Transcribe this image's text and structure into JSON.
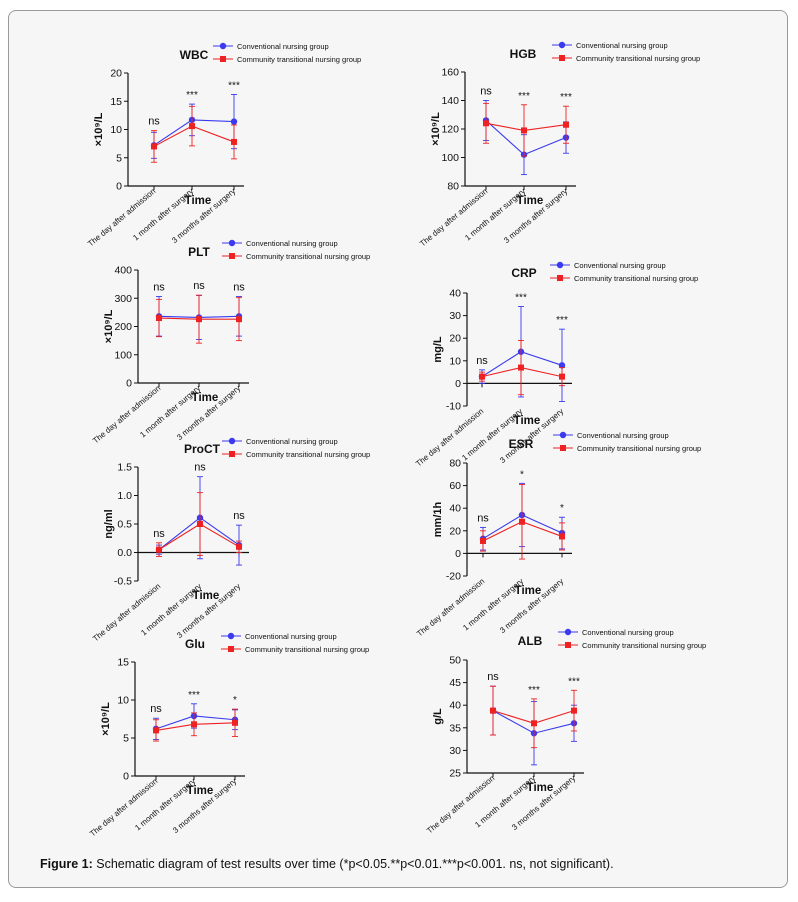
{
  "caption": {
    "label": "Figure 1:",
    "text": " Schematic diagram of test results over time (*p<0.05.**p<0.01.***p<0.001. ns, not significant)."
  },
  "colors": {
    "conventional": "#3a3af0",
    "community": "#ee2222"
  },
  "chart_data": [
    {
      "type": "line",
      "title": "WBC",
      "ylabel": "×10⁹/L",
      "xlabel": "Time",
      "categories": [
        "The day after admission",
        "1 month after surgery",
        "3 months after surgery"
      ],
      "ylim": [
        0,
        20
      ],
      "yticks": [
        0,
        5,
        10,
        15,
        20
      ],
      "significance": [
        "ns",
        "***",
        "***"
      ],
      "legend": [
        "Conventional nursing group",
        "Community transitional nursing group"
      ],
      "series": [
        {
          "name": "Conventional nursing group",
          "values": [
            7.2,
            11.7,
            11.4
          ],
          "err": [
            2.3,
            2.8,
            4.8
          ]
        },
        {
          "name": "Community transitional nursing group",
          "values": [
            7.0,
            10.6,
            7.8
          ],
          "err": [
            2.8,
            3.5,
            3.0
          ]
        }
      ]
    },
    {
      "type": "line",
      "title": "HGB",
      "ylabel": "×10⁹/L",
      "xlabel": "Time",
      "categories": [
        "The day after admission",
        "1 month after surgery",
        "3 months after surgery"
      ],
      "ylim": [
        80,
        160
      ],
      "yticks": [
        80,
        100,
        120,
        140,
        160
      ],
      "significance": [
        "ns",
        "***",
        "***"
      ],
      "legend": [
        "Conventional nursing group",
        "Community transitional nursing group"
      ],
      "series": [
        {
          "name": "Conventional nursing group",
          "values": [
            126,
            102,
            114
          ],
          "err": [
            14,
            14,
            11
          ]
        },
        {
          "name": "Community transitional nursing group",
          "values": [
            124,
            119,
            123
          ],
          "err": [
            14,
            18,
            13
          ]
        }
      ]
    },
    {
      "type": "line",
      "title": "PLT",
      "ylabel": "×10⁹/L",
      "xlabel": "Time",
      "categories": [
        "The day after admission",
        "1 month after surgery",
        "3 months after surgery"
      ],
      "ylim": [
        0,
        400
      ],
      "yticks": [
        0,
        100,
        200,
        300,
        400
      ],
      "significance": [
        "ns",
        "ns",
        "ns"
      ],
      "legend": [
        "Conventional nursing group",
        "Community transitional nursing group"
      ],
      "series": [
        {
          "name": "Conventional nursing group",
          "values": [
            236,
            232,
            236
          ],
          "err": [
            70,
            78,
            70
          ]
        },
        {
          "name": "Community transitional nursing group",
          "values": [
            230,
            226,
            226
          ],
          "err": [
            66,
            85,
            76
          ]
        }
      ]
    },
    {
      "type": "line",
      "title": "CRP",
      "ylabel": "mg/L",
      "xlabel": "Time",
      "categories": [
        "The day after admission",
        "1 month after surgery",
        "3 months after surgery"
      ],
      "ylim": [
        -10,
        40
      ],
      "yticks": [
        -10,
        0,
        10,
        20,
        30,
        40
      ],
      "significance": [
        "ns",
        "***",
        "***"
      ],
      "legend": [
        "Conventional nursing group",
        "Community transitional nursing group"
      ],
      "series": [
        {
          "name": "Conventional nursing group",
          "values": [
            3,
            14,
            8
          ],
          "err": [
            3,
            20,
            16
          ]
        },
        {
          "name": "Community transitional nursing group",
          "values": [
            3,
            7,
            3
          ],
          "err": [
            2,
            12,
            4
          ]
        }
      ]
    },
    {
      "type": "line",
      "title": "ProCT",
      "ylabel": "ng/ml",
      "xlabel": "Time",
      "categories": [
        "The day after admission",
        "1 month after surgery",
        "3 months after surgery"
      ],
      "ylim": [
        -0.5,
        1.5
      ],
      "yticks": [
        -0.5,
        0.0,
        0.5,
        1.0,
        1.5
      ],
      "ytick_labels": [
        "-0.5",
        "0.0",
        "0.5",
        "1.0",
        "1.5"
      ],
      "significance": [
        "ns",
        "ns",
        "ns"
      ],
      "legend": [
        "Conventional nursing group",
        "Community transitional nursing group"
      ],
      "series": [
        {
          "name": "Conventional nursing group",
          "values": [
            0.05,
            0.61,
            0.13
          ],
          "err": [
            0.08,
            0.72,
            0.35
          ]
        },
        {
          "name": "Community transitional nursing group",
          "values": [
            0.05,
            0.5,
            0.1
          ],
          "err": [
            0.12,
            0.55,
            0.1
          ]
        }
      ]
    },
    {
      "type": "line",
      "title": "ESR",
      "ylabel": "mm/1h",
      "xlabel": "Time",
      "categories": [
        "The day after admission",
        "1 month after surgery",
        "3 months after surgery"
      ],
      "ylim": [
        -20,
        80
      ],
      "yticks": [
        -20,
        0,
        20,
        40,
        60,
        80
      ],
      "significance": [
        "ns",
        "*",
        "*"
      ],
      "legend": [
        "Conventional nursing group",
        "Community transitional nursing group"
      ],
      "series": [
        {
          "name": "Conventional nursing group",
          "values": [
            13,
            34,
            18
          ],
          "err": [
            10,
            28,
            14
          ]
        },
        {
          "name": "Community transitional nursing group",
          "values": [
            11,
            28,
            15
          ],
          "err": [
            9,
            33,
            12
          ]
        }
      ]
    },
    {
      "type": "line",
      "title": "Glu",
      "ylabel": "×10⁹/L",
      "xlabel": "Time",
      "categories": [
        "The day after admission",
        "1 month after surgery",
        "3 months after surgery"
      ],
      "ylim": [
        0,
        15
      ],
      "yticks": [
        0,
        5,
        10,
        15
      ],
      "significance": [
        "ns",
        "***",
        "*"
      ],
      "legend": [
        "Conventional nursing group",
        "Community transitional nursing group"
      ],
      "series": [
        {
          "name": "Conventional nursing group",
          "values": [
            6.2,
            7.9,
            7.4
          ],
          "err": [
            1.4,
            1.6,
            1.3
          ]
        },
        {
          "name": "Community transitional nursing group",
          "values": [
            6.0,
            6.8,
            7.0
          ],
          "err": [
            1.4,
            1.5,
            1.8
          ]
        }
      ]
    },
    {
      "type": "line",
      "title": "ALB",
      "ylabel": "g/L",
      "xlabel": "Time",
      "categories": [
        "The day after admission",
        "1 month after surgery",
        "3 months after surgery"
      ],
      "ylim": [
        25,
        50
      ],
      "yticks": [
        25,
        30,
        35,
        40,
        45,
        50
      ],
      "significance": [
        "ns",
        "***",
        "***"
      ],
      "legend": [
        "Conventional nursing group",
        "Community transitional nursing group"
      ],
      "series": [
        {
          "name": "Conventional nursing group",
          "values": [
            38.8,
            33.8,
            36.0
          ],
          "err": [
            5.4,
            7.0,
            4.0
          ]
        },
        {
          "name": "Community transitional nursing group",
          "values": [
            38.8,
            36.0,
            38.8
          ],
          "err": [
            5.4,
            5.4,
            4.5
          ]
        }
      ]
    }
  ]
}
